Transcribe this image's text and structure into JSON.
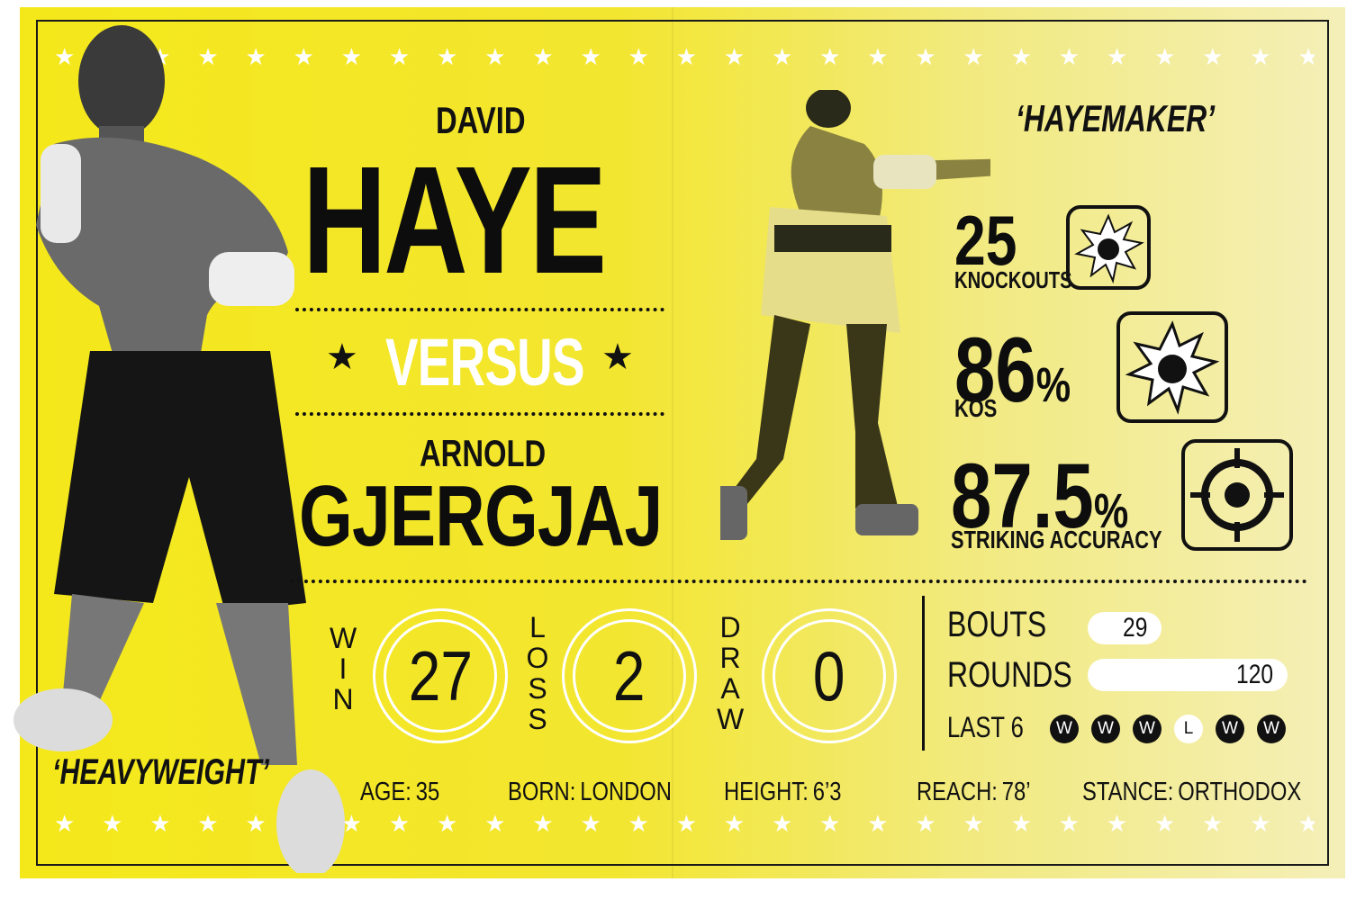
{
  "fighter": {
    "first_name": "DAVID",
    "last_name": "HAYE",
    "nickname": "‘HAYEMAKER’",
    "division": "‘HEAVYWEIGHT’"
  },
  "versus_label": "VERSUS",
  "opponent": {
    "first_name": "ARNOLD",
    "last_name": "GJERGJAJ"
  },
  "stats": {
    "knockouts": {
      "value": "25",
      "label": "KNOCKOUTS",
      "icon": "glove-burst-icon"
    },
    "ko_pct": {
      "value": "86",
      "unit": "%",
      "label": "KOS",
      "icon": "glove-burst-icon"
    },
    "accuracy": {
      "value": "87.5",
      "unit": "%",
      "label": "STRIKING ACCURACY",
      "icon": "target-icon"
    }
  },
  "record": {
    "win": {
      "label": "WIN",
      "value": "27"
    },
    "loss": {
      "label": "LOSS",
      "value": "2"
    },
    "draw": {
      "label": "DRAW",
      "value": "0"
    }
  },
  "career": {
    "bouts_label": "BOUTS",
    "bouts": "29",
    "rounds_label": "ROUNDS",
    "rounds": "120",
    "last6_label": "LAST 6",
    "last6": [
      "W",
      "W",
      "W",
      "L",
      "W",
      "W"
    ]
  },
  "info": {
    "age_label": "AGE:",
    "age": "35",
    "born_label": "BORN:",
    "born": "LONDON",
    "height_label": "HEIGHT:",
    "height": "6’3",
    "reach_label": "REACH:",
    "reach": "78’",
    "stance_label": "STANCE:",
    "stance": "ORTHODOX"
  },
  "colors": {
    "poster_yellow": "#f4e81a",
    "ink": "#111111",
    "accent_white": "#ffffff"
  }
}
